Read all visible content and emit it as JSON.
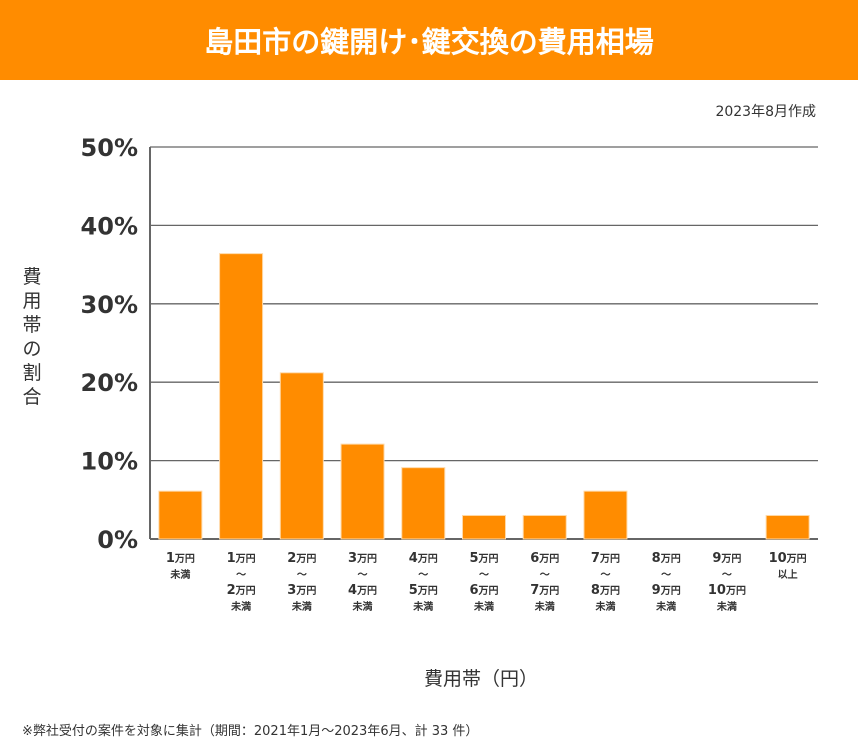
{
  "header": {
    "title": "島田市の鍵開け･鍵交換の費用相場"
  },
  "date": "2023年8月作成",
  "footnote": "※弊社受付の案件を対象に集計（期間：2021年1月～2023年6月、計 33 件）",
  "chart_data": {
    "type": "bar",
    "title": "島田市の鍵開け･鍵交換の費用相場",
    "xlabel": "費用帯（円）",
    "ylabel": "費用帯の割合",
    "ylim": [
      0,
      50
    ],
    "yticks": [
      "0%",
      "10%",
      "20%",
      "30%",
      "40%",
      "50%"
    ],
    "grid": true,
    "categories": [
      [
        "1万円",
        "未満"
      ],
      [
        "1万円",
        "〜",
        "2万円",
        "未満"
      ],
      [
        "2万円",
        "〜",
        "3万円",
        "未満"
      ],
      [
        "3万円",
        "〜",
        "4万円",
        "未満"
      ],
      [
        "4万円",
        "〜",
        "5万円",
        "未満"
      ],
      [
        "5万円",
        "〜",
        "6万円",
        "未満"
      ],
      [
        "6万円",
        "〜",
        "7万円",
        "未満"
      ],
      [
        "7万円",
        "〜",
        "8万円",
        "未満"
      ],
      [
        "8万円",
        "〜",
        "9万円",
        "未満"
      ],
      [
        "9万円",
        "〜",
        "10万円",
        "未満"
      ],
      [
        "10万円",
        "以上"
      ]
    ],
    "values": [
      6.1,
      36.4,
      21.2,
      12.1,
      9.1,
      3.0,
      3.0,
      6.1,
      0,
      0,
      3.0
    ],
    "color": "#ff8c00"
  }
}
